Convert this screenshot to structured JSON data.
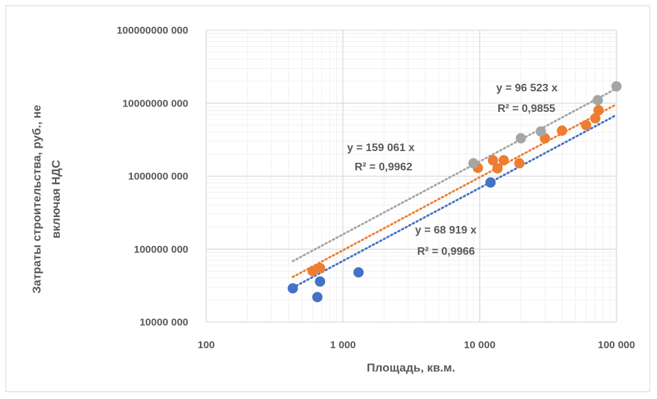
{
  "chart_data": {
    "type": "scatter",
    "title": "",
    "xlabel": "Площадь, кв.м.",
    "ylabel_lines": [
      "Затраты строительства, руб., не",
      "включая НДС"
    ],
    "x_scale": "log",
    "y_scale": "log",
    "xlim": [
      100,
      100000
    ],
    "ylim": [
      10000000,
      100000000000
    ],
    "grid": true,
    "legend": "none",
    "x_ticks": [
      {
        "value": 100,
        "label": "100"
      },
      {
        "value": 1000,
        "label": "1 000"
      },
      {
        "value": 10000,
        "label": "10 000"
      },
      {
        "value": 100000,
        "label": "100 000"
      }
    ],
    "y_ticks": [
      {
        "value": 10000000,
        "label": "10000 000"
      },
      {
        "value": 100000000,
        "label": "100000 000"
      },
      {
        "value": 1000000000,
        "label": "1000000 000"
      },
      {
        "value": 10000000000,
        "label": "10000000 000"
      },
      {
        "value": 100000000000,
        "label": "100000000 000"
      }
    ],
    "series": [
      {
        "color": "#4472c4",
        "points": [
          [
            430,
            29000000
          ],
          [
            650,
            22000000
          ],
          [
            680,
            36000000
          ],
          [
            1300,
            48000000
          ],
          [
            12000,
            820000000
          ]
        ],
        "trendline": {
          "k": 68919,
          "x_range": [
            430,
            100000
          ]
        }
      },
      {
        "color": "#ed7d31",
        "points": [
          [
            600,
            50000000
          ],
          [
            680,
            55000000
          ],
          [
            9700,
            1300000000
          ],
          [
            12500,
            1650000000
          ],
          [
            13500,
            1280000000
          ],
          [
            15000,
            1650000000
          ],
          [
            19500,
            1500000000
          ],
          [
            30000,
            3300000000
          ],
          [
            40000,
            4200000000
          ],
          [
            60000,
            5000000000
          ],
          [
            70000,
            6200000000
          ],
          [
            74000,
            8000000000
          ]
        ],
        "trendline": {
          "k": 96523,
          "x_range": [
            430,
            100000
          ]
        }
      },
      {
        "color": "#a5a5a5",
        "points": [
          [
            9000,
            1500000000
          ],
          [
            20000,
            3300000000
          ],
          [
            28000,
            4100000000
          ],
          [
            73000,
            11000000000
          ],
          [
            100000,
            17000000000
          ]
        ],
        "trendline": {
          "k": 159061,
          "x_range": [
            430,
            100000
          ]
        }
      }
    ],
    "annotations": [
      {
        "eq": "y = 96 523 x",
        "r2": "R² = 0,9855"
      },
      {
        "eq": "y = 159 061 x",
        "r2": "R² = 0,9962"
      },
      {
        "eq": "y = 68 919 x",
        "r2": "R² = 0,9966"
      }
    ]
  }
}
